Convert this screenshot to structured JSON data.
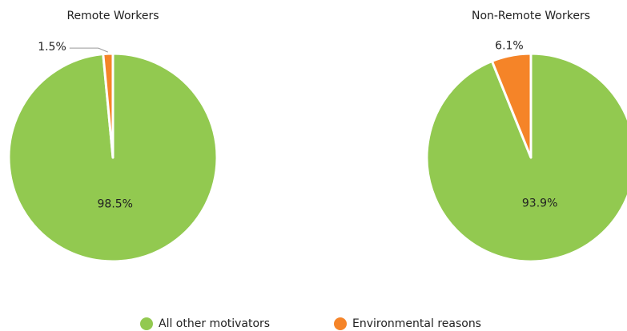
{
  "chart_data": [
    {
      "type": "pie",
      "title": "Remote Workers",
      "categories": [
        "All other motivators",
        "Environmental reasons"
      ],
      "values": [
        98.5,
        1.5
      ],
      "value_labels": [
        "98.5%",
        "1.5%"
      ],
      "colors": [
        "#92c950",
        "#f58428"
      ]
    },
    {
      "type": "pie",
      "title": "Non-Remote Workers",
      "categories": [
        "All other motivators",
        "Environmental reasons"
      ],
      "values": [
        93.9,
        6.1
      ],
      "value_labels": [
        "93.9%",
        "6.1%"
      ],
      "colors": [
        "#92c950",
        "#f58428"
      ]
    }
  ]
}
